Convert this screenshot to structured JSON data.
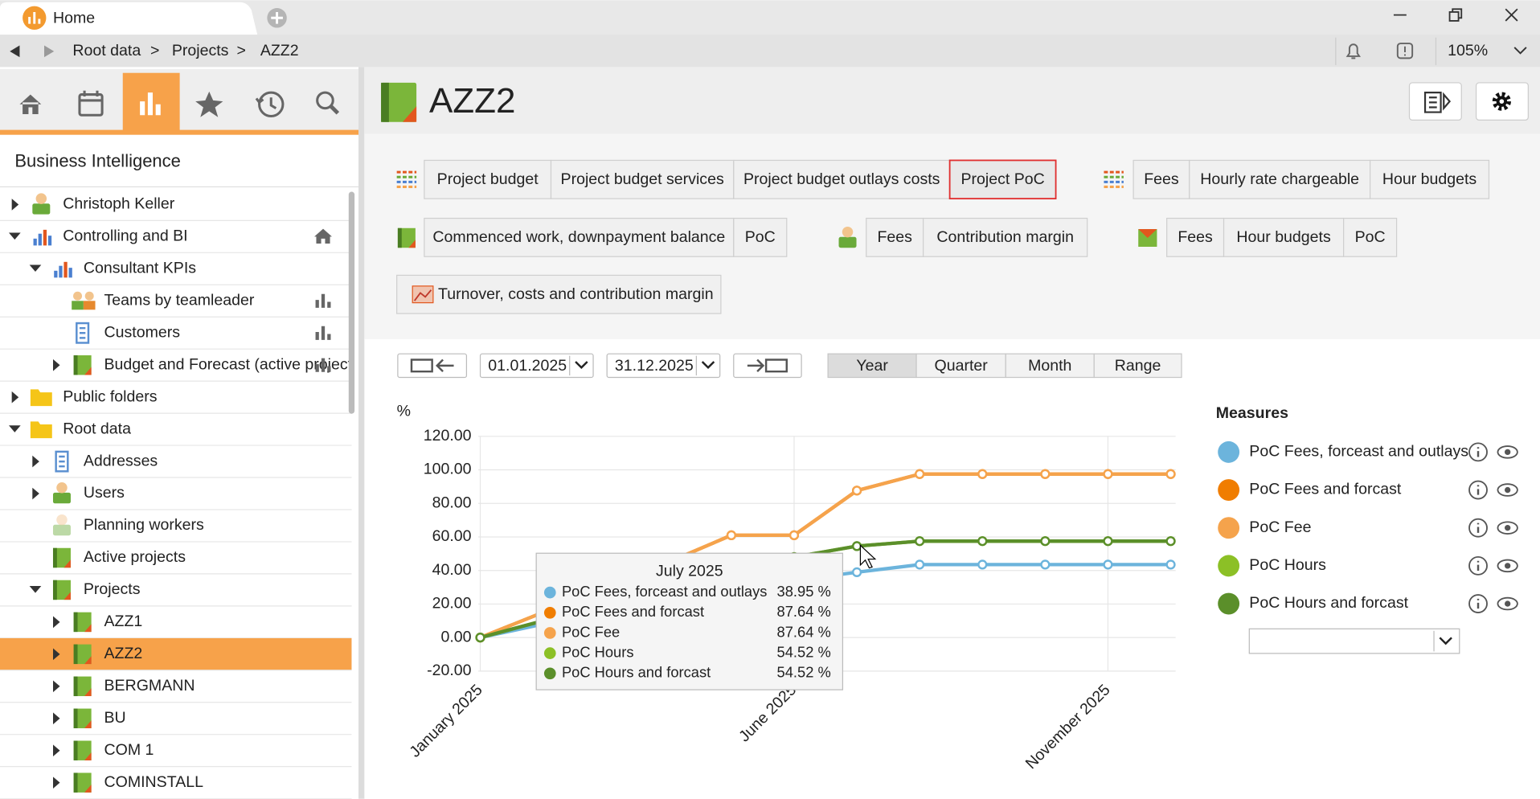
{
  "tab": "Home",
  "breadcrumb": {
    "items": [
      "Root data",
      "Projects",
      "AZZ2"
    ],
    "separator": ">"
  },
  "zoom": "105%",
  "sidebar": {
    "title": "Business Intelligence",
    "tree": [
      {
        "label": "Christoph Keller",
        "icon": "person",
        "collapsed": true
      },
      {
        "label": "Controlling and BI",
        "icon": "chart",
        "badge": "home",
        "children": [
          {
            "label": "Consultant KPIs",
            "icon": "chart",
            "children": [
              {
                "label": "Teams by teamleader",
                "icon": "team",
                "badge": "chart"
              },
              {
                "label": "Customers",
                "icon": "building",
                "badge": "chart"
              },
              {
                "label": "Budget and Forecast (active projects)",
                "icon": "book",
                "collapsed": true,
                "badge": "chart"
              }
            ]
          }
        ]
      },
      {
        "label": "Public folders",
        "icon": "folder",
        "collapsed": true
      },
      {
        "label": "Root data",
        "icon": "folder",
        "children": [
          {
            "label": "Addresses",
            "icon": "building",
            "collapsed": true
          },
          {
            "label": "Users",
            "icon": "person",
            "collapsed": true
          },
          {
            "label": "Planning workers",
            "icon": "person",
            "disabled": true
          },
          {
            "label": "Active projects",
            "icon": "book"
          },
          {
            "label": "Projects",
            "icon": "book",
            "children": [
              {
                "label": "AZZ1",
                "icon": "book",
                "collapsed": true
              },
              {
                "label": "AZZ2",
                "icon": "book",
                "collapsed": true,
                "selected": true
              },
              {
                "label": "BERGMANN",
                "icon": "book",
                "collapsed": true
              },
              {
                "label": "BU",
                "icon": "book",
                "collapsed": true
              },
              {
                "label": "COM 1",
                "icon": "book",
                "collapsed": true
              },
              {
                "label": "COMINSTALL",
                "icon": "book",
                "collapsed": true
              }
            ]
          }
        ]
      }
    ]
  },
  "header": {
    "title": "AZZ2"
  },
  "button_groups": [
    {
      "buttons": [
        "Project budget",
        "Project budget services",
        "Project budget outlays costs",
        "Project PoC"
      ],
      "active": 3
    },
    {
      "buttons": [
        "Fees",
        "Hourly rate chargeable",
        "Hour budgets"
      ]
    },
    {
      "buttons": [
        "Commenced work, downpayment balance",
        "PoC"
      ]
    },
    {
      "buttons": [
        "Fees",
        "Contribution margin"
      ]
    },
    {
      "buttons": [
        "Fees",
        "Hour budgets",
        "PoC"
      ]
    },
    {
      "buttons": [
        "Turnover, costs and contribution margin"
      ]
    }
  ],
  "date_range": {
    "from": "01.01.2025",
    "to": "31.12.2025"
  },
  "periods": {
    "options": [
      "Year",
      "Quarter",
      "Month",
      "Range"
    ],
    "active": 0
  },
  "chart_data": {
    "type": "line",
    "y_label": "%",
    "legend_title": "Measures",
    "grid": true,
    "categories": [
      "January 2025",
      null,
      null,
      null,
      null,
      "June 2025",
      null,
      null,
      null,
      null,
      "November 2025",
      null
    ],
    "ylim": [
      -20,
      120
    ],
    "yticks": [
      {
        "value": 120,
        "label": "120.00"
      },
      {
        "value": 100,
        "label": "100.00"
      },
      {
        "value": 80,
        "label": "80.00"
      },
      {
        "value": 60,
        "label": "60.00"
      },
      {
        "value": 40,
        "label": "40.00"
      },
      {
        "value": 20,
        "label": "20.00"
      },
      {
        "value": 0,
        "label": "0.00"
      },
      {
        "value": -20,
        "label": "-20.00"
      }
    ],
    "series": [
      {
        "name": "PoC Fees, forceast and outlays",
        "color": "#6cb4dc",
        "values": [
          0,
          8,
          15,
          22,
          28,
          34,
          38.95,
          43.5,
          43.5,
          43.5,
          43.5,
          43.5
        ]
      },
      {
        "name": "PoC Fees and forcast",
        "color": "#f07d00",
        "values": [
          0,
          15,
          30,
          45,
          61,
          61,
          87.64,
          97.5,
          97.5,
          97.5,
          97.5,
          97.5
        ]
      },
      {
        "name": "PoC Fee",
        "color": "#f5a34c",
        "values": [
          0,
          15,
          30,
          45,
          61,
          61,
          87.64,
          97.5,
          97.5,
          97.5,
          97.5,
          97.5
        ]
      },
      {
        "name": "PoC Hours",
        "color": "#8cc026",
        "values": [
          0,
          10,
          20,
          30,
          40,
          48,
          54.52,
          57.5,
          57.5,
          57.5,
          57.5,
          57.5
        ]
      },
      {
        "name": "PoC Hours and forcast",
        "color": "#5b8f2a",
        "values": [
          0,
          10,
          20,
          30,
          40,
          48,
          54.52,
          57.5,
          57.5,
          57.5,
          57.5,
          57.5
        ]
      }
    ]
  },
  "tooltip": {
    "title": "July 2025",
    "values": [
      "38.95 %",
      "87.64 %",
      "87.64 %",
      "54.52 %",
      "54.52 %"
    ]
  }
}
